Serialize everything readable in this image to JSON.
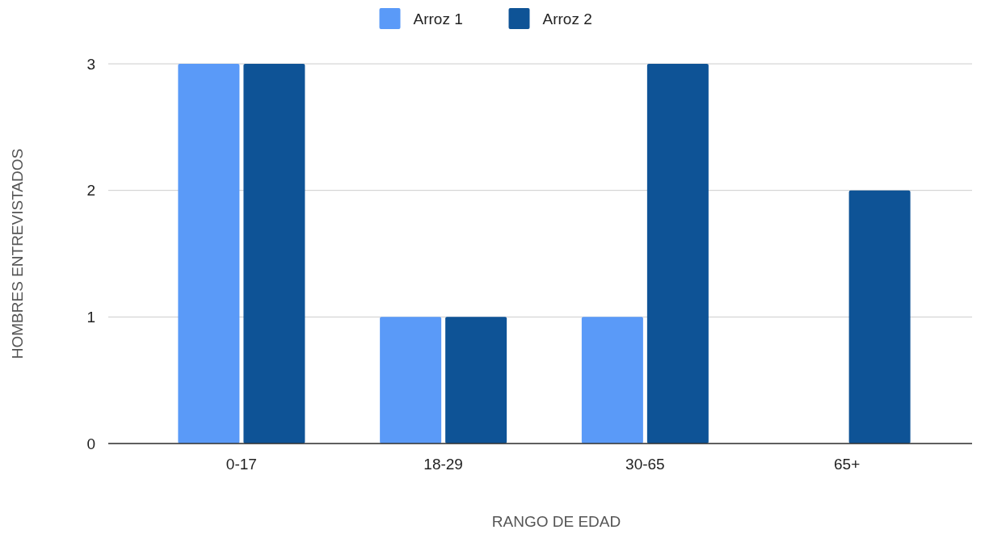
{
  "chart_data": {
    "type": "bar",
    "xlabel": "RANGO DE EDAD",
    "ylabel": "HOMBRES ENTREVISTADOS",
    "categories": [
      "0-17",
      "18-29",
      "30-65",
      "65+"
    ],
    "series": [
      {
        "name": "Arroz 1",
        "color": "#5a9af8",
        "values": [
          3,
          1,
          1,
          0
        ]
      },
      {
        "name": "Arroz 2",
        "color": "#0e5396",
        "values": [
          3,
          1,
          3,
          2
        ]
      }
    ],
    "ylim": [
      0,
      3
    ],
    "yticks": [
      0,
      1,
      2,
      3
    ],
    "grid": "y",
    "legend": "top"
  }
}
